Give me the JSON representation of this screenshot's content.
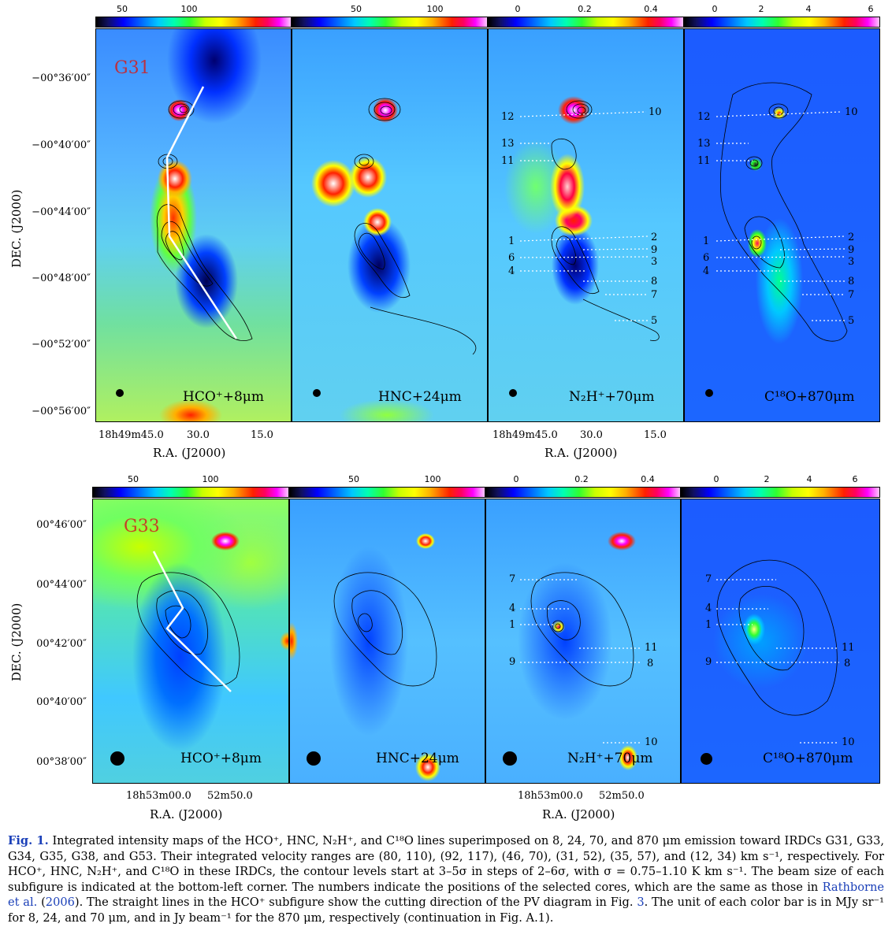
{
  "figure": {
    "top_row": {
      "irdc": "G31",
      "colorbars": [
        {
          "ticks": [
            "50",
            "100"
          ]
        },
        {
          "ticks": [
            "50",
            "100"
          ]
        },
        {
          "ticks": [
            "0",
            "0.2",
            "0.4"
          ]
        },
        {
          "ticks": [
            "0",
            "2",
            "4",
            "6"
          ]
        }
      ],
      "panels": [
        "HCO⁺+8μm",
        "HNC+24μm",
        "N₂H⁺+70μm",
        "C¹⁸O+870μm"
      ],
      "dec_labels": [
        "−00°36′00″",
        "−00°40′00″",
        "−00°44′00″",
        "−00°48′00″",
        "−00°52′00″",
        "−00°56′00″"
      ],
      "dec_title": "DEC. (J2000)",
      "ra_labels": [
        "18h49m45.0",
        "30.0",
        "15.0"
      ],
      "ra_title": "R.A. (J2000)",
      "cores_left": [
        "12",
        "13",
        "11",
        "1",
        "6",
        "4"
      ],
      "cores_right": [
        "10",
        "2",
        "9",
        "3",
        "8",
        "7",
        "5"
      ]
    },
    "bottom_row": {
      "irdc": "G33",
      "colorbars": [
        {
          "ticks": [
            "50",
            "100"
          ]
        },
        {
          "ticks": [
            "50",
            "100"
          ]
        },
        {
          "ticks": [
            "0",
            "0.2",
            "0.4"
          ]
        },
        {
          "ticks": [
            "0",
            "2",
            "4",
            "6"
          ]
        }
      ],
      "panels": [
        "HCO⁺+8μm",
        "HNC+24μm",
        "N₂H⁺+70μm",
        "C¹⁸O+870μm"
      ],
      "dec_labels": [
        "00°46′00″",
        "00°44′00″",
        "00°42′00″",
        "00°40′00″",
        "00°38′00″"
      ],
      "dec_title": "DEC. (J2000)",
      "ra_labels": [
        "18h53m00.0",
        "52m50.0"
      ],
      "ra_title": "R.A. (J2000)",
      "cores_left": [
        "7",
        "4",
        "1",
        "9"
      ],
      "cores_right": [
        "11",
        "8",
        "10"
      ]
    }
  },
  "caption": {
    "label": "Fig. 1.",
    "part1": " Integrated intensity maps of the HCO⁺, HNC, N₂H⁺, and C¹⁸O lines superimposed on 8, 24, 70, and 870 μm emission toward IRDCs G31, G33, G34, G35, G38, and G53. Their integrated velocity ranges are (80, 110), (92, 117), (46, 70), (31, 52), (35, 57), and (12, 34) km s⁻¹, respectively. For HCO⁺, HNC, N₂H⁺, and C¹⁸O in these IRDCs, the contour levels start at 3–5σ in steps of 2–6σ, with σ = 0.75–1.10 K km s⁻¹. The beam size of each subfigure is indicated at the bottom-left corner. The numbers indicate the positions of the selected cores, which are the same as those in ",
    "ref1": "Rathborne et al.",
    "part2": " (",
    "ref2": "2006",
    "part3": "). The straight lines in the HCO⁺ subfigure show the cutting direction of the PV diagram in Fig. ",
    "ref3": "3",
    "part4": ". The unit of each color bar is in MJy sr⁻¹ for 8, 24, and 70 μm, and in Jy beam⁻¹ for the 870 μm, respectively (continuation in Fig. A.1)."
  },
  "colors": {
    "link": "#1a3fb8",
    "irdc_label": "#d02020"
  }
}
